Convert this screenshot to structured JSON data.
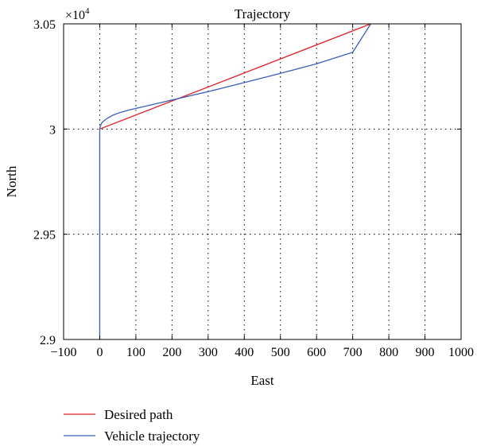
{
  "chart_data": {
    "type": "line",
    "title": "Trajectory",
    "xlabel": "East",
    "ylabel": "North",
    "y_multiplier_label": "×10",
    "y_multiplier_exp": "4",
    "xlim": [
      -100,
      1000
    ],
    "ylim": [
      2.9,
      3.05
    ],
    "xticks": [
      -100,
      0,
      100,
      200,
      300,
      400,
      500,
      600,
      700,
      800,
      900,
      1000
    ],
    "xtick_labels": [
      "−100",
      "0",
      "100",
      "200",
      "300",
      "400",
      "500",
      "600",
      "700",
      "800",
      "900",
      "1000"
    ],
    "yticks": [
      2.9,
      2.95,
      3.0,
      3.05
    ],
    "ytick_labels": [
      "2.9",
      "2.95",
      "3",
      "3.05"
    ],
    "grid": true,
    "legend_position": "bottom-left, outside plot",
    "series": [
      {
        "name": "Desired path",
        "color": "#e8202a",
        "x": [
          0,
          750
        ],
        "y": [
          3.0,
          3.05
        ]
      },
      {
        "name": "Vehicle trajectory",
        "color": "#3a5fb5",
        "x": [
          0,
          0,
          0,
          1,
          3,
          6,
          12,
          20,
          35,
          55,
          80,
          100,
          150,
          200,
          250,
          300,
          400,
          500,
          600,
          700,
          750
        ],
        "y": [
          2.9,
          2.95,
          3.0,
          3.001,
          3.002,
          3.003,
          3.004,
          3.005,
          3.0065,
          3.0078,
          3.009,
          3.0098,
          3.0118,
          3.0138,
          3.0158,
          3.0178,
          3.0221,
          3.0265,
          3.031,
          3.0365,
          3.05
        ]
      }
    ]
  }
}
